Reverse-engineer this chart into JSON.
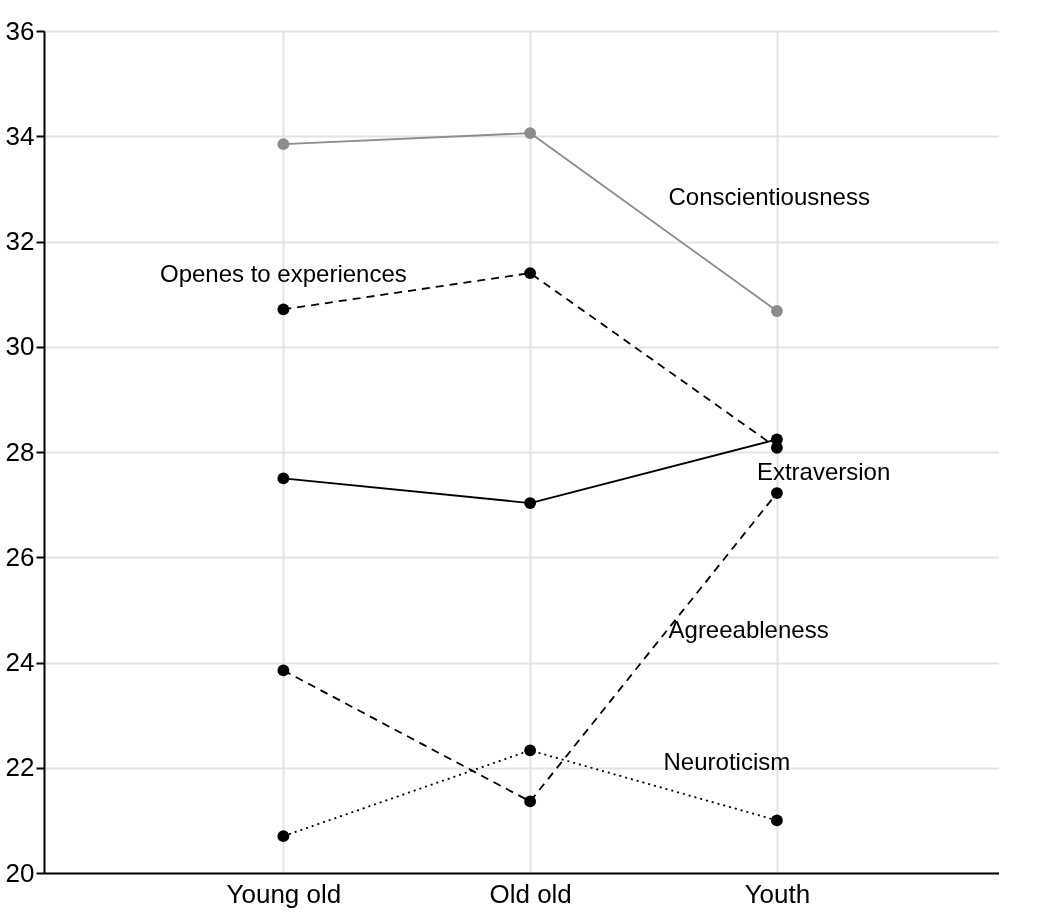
{
  "chart_data": {
    "type": "line",
    "categories": [
      "Young old",
      "Old old",
      "Youth"
    ],
    "ylim": [
      20,
      36
    ],
    "yticks": [
      20,
      22,
      24,
      26,
      28,
      30,
      32,
      34,
      36
    ],
    "grid": true,
    "marker": "circle",
    "series": [
      {
        "name": "Neuroticism",
        "color": "#000000",
        "line_style": "dotted",
        "values": [
          20.7,
          22.33,
          21.0
        ]
      },
      {
        "name": "Agreeableness",
        "color": "#000000",
        "line_style": "dashed",
        "values": [
          23.85,
          21.36,
          27.22
        ]
      },
      {
        "name": "Openes to experiences",
        "color": "#000000",
        "line_style": "dashed",
        "values": [
          30.71,
          31.4,
          28.08
        ]
      },
      {
        "name": "Conscientiousness",
        "color": "#8c8c8c",
        "line_style": "solid",
        "values": [
          33.85,
          34.06,
          30.68
        ]
      },
      {
        "name": "Extraversion",
        "color": "#000000",
        "line_style": "solid",
        "values": [
          27.5,
          27.03,
          28.24
        ]
      }
    ]
  }
}
